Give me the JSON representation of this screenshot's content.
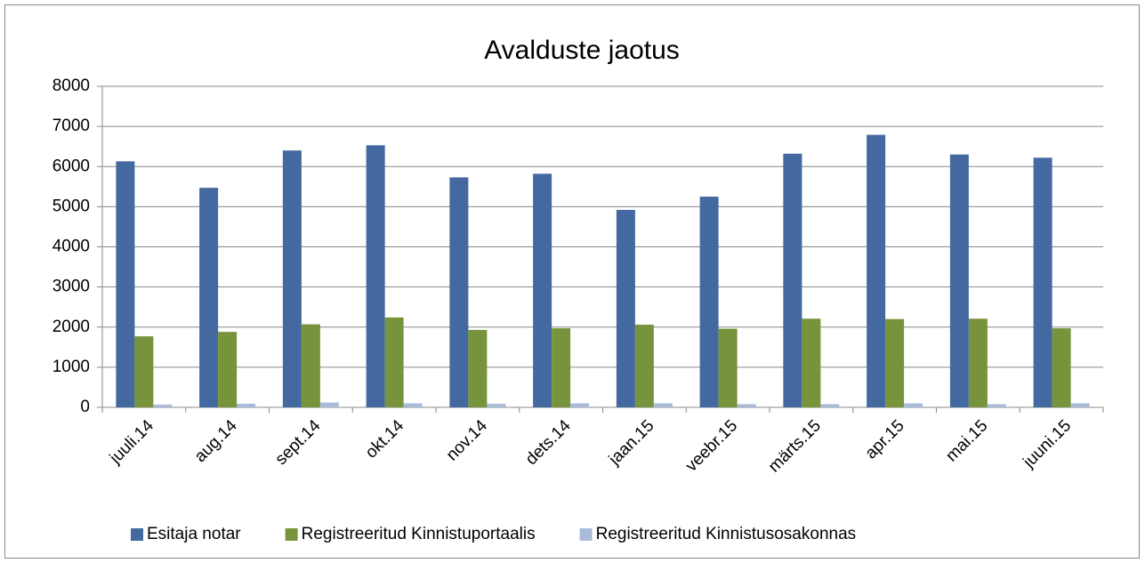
{
  "chart_data": {
    "type": "bar",
    "title": "Avalduste jaotus",
    "categories": [
      "juuli.14",
      "aug.14",
      "sept.14",
      "okt.14",
      "nov.14",
      "dets.14",
      "jaan.15",
      "veebr.15",
      "märts.15",
      "apr.15",
      "mai.15",
      "juuni.15"
    ],
    "series": [
      {
        "name": "Esitaja notar",
        "color": "#4369a0",
        "values": [
          6130,
          5470,
          6400,
          6530,
          5730,
          5820,
          4920,
          5250,
          6320,
          6790,
          6300,
          6220
        ]
      },
      {
        "name": "Registreeritud Kinnistuportaalis",
        "color": "#77933c",
        "values": [
          1770,
          1880,
          2070,
          2240,
          1930,
          1970,
          2060,
          1960,
          2210,
          2200,
          2210,
          1970
        ]
      },
      {
        "name": "Registreeritud Kinnistusosakonnas",
        "color": "#a9bbd9",
        "values": [
          70,
          90,
          120,
          100,
          90,
          100,
          100,
          80,
          80,
          100,
          80,
          100
        ]
      }
    ],
    "ylim": [
      0,
      8000
    ],
    "yticks": [
      0,
      1000,
      2000,
      3000,
      4000,
      5000,
      6000,
      7000,
      8000
    ],
    "grid": true,
    "legend": "bottom"
  }
}
